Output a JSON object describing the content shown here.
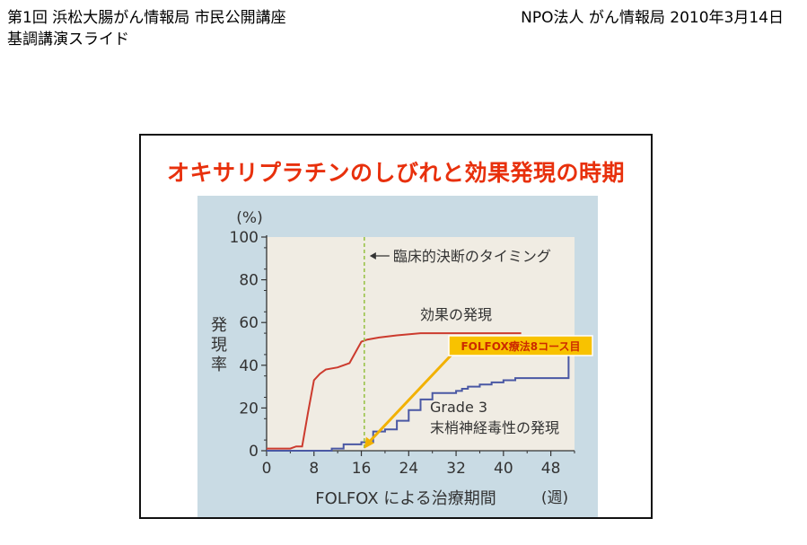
{
  "header": {
    "left_line1": "第1回 浜松大腸がん情報局 市民公開講座",
    "left_line2": "基調講演スライド",
    "right": "NPO法人 がん情報局 2010年3月14日"
  },
  "slide": {
    "title": "オキサリプラチンのしびれと効果発現の時期"
  },
  "colors": {
    "plot_bg": "#f0ece3",
    "panel_bg": "#c9dbe4",
    "efficacy": "#cc3b2e",
    "neuropathy": "#4a58a4",
    "dash": "#9ac24a",
    "annotation_arrow": "#f2b100",
    "callout_bg": "#f8c200",
    "callout_text": "#cc2a00",
    "title": "#e8300c"
  },
  "chart_data": {
    "type": "line",
    "xlabel": "FOLFOX による治療期間",
    "x_unit": "(週)",
    "ylabel": "発現率",
    "y_unit": "(%)",
    "xlim": [
      0,
      52
    ],
    "ylim": [
      0,
      100
    ],
    "xticks": [
      0,
      8,
      16,
      24,
      32,
      40,
      48
    ],
    "yticks": [
      0,
      20,
      40,
      60,
      80,
      100
    ],
    "series": [
      {
        "name": "効果の発現",
        "color": "#cc3b2e",
        "step": false,
        "points": [
          [
            0,
            1
          ],
          [
            4,
            1
          ],
          [
            5,
            2
          ],
          [
            6,
            2
          ],
          [
            7,
            18
          ],
          [
            8,
            33
          ],
          [
            9,
            36
          ],
          [
            10,
            38
          ],
          [
            12,
            39
          ],
          [
            13,
            40
          ],
          [
            14,
            41
          ],
          [
            15,
            46
          ],
          [
            16,
            51
          ],
          [
            17,
            52
          ],
          [
            19,
            53
          ],
          [
            22,
            54
          ],
          [
            26,
            55
          ],
          [
            43,
            55
          ]
        ]
      },
      {
        "name": "Grade 3 末梢神経毒性の発現",
        "label_line1": "Grade 3",
        "label_line2": "末梢神経毒性の発現",
        "color": "#4a58a4",
        "step": true,
        "points": [
          [
            0,
            0
          ],
          [
            11,
            1
          ],
          [
            13,
            3
          ],
          [
            16,
            4
          ],
          [
            18,
            9
          ],
          [
            20,
            10
          ],
          [
            22,
            14
          ],
          [
            24,
            19
          ],
          [
            26,
            24
          ],
          [
            28,
            27
          ],
          [
            32,
            28
          ],
          [
            33,
            29
          ],
          [
            34,
            30
          ],
          [
            36,
            31
          ],
          [
            38,
            32
          ],
          [
            40,
            33
          ],
          [
            42,
            34
          ],
          [
            50,
            34
          ],
          [
            51,
            41
          ],
          [
            51,
            45
          ]
        ]
      }
    ],
    "annotations": {
      "decision_x": 16.5,
      "decision_label": "臨床的決断のタイミング",
      "callout_label": "FOLFOX療法8コース目",
      "callout_target_x": 16.5,
      "callout_target_y": 1
    }
  }
}
